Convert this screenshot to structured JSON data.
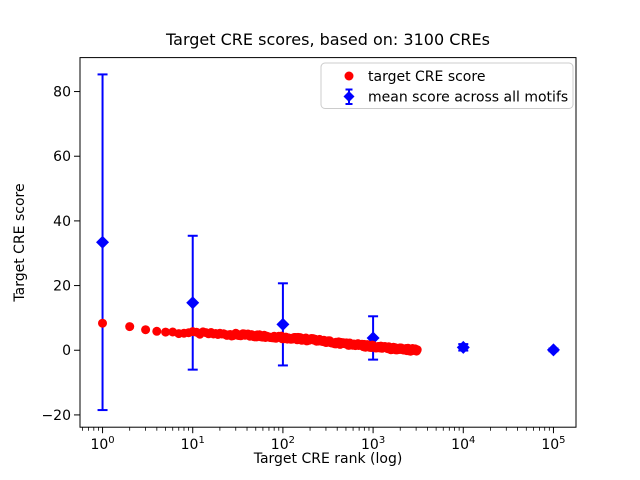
{
  "chart_data": {
    "type": "scatter",
    "title": "Target CRE scores, based on: 3100 CREs",
    "xlabel": "Target CRE rank (log)",
    "ylabel": "Target CRE score",
    "x_scale": "log10",
    "xlim_log10": [
      -0.25,
      5.25
    ],
    "ylim": [
      -23.8,
      90.5
    ],
    "x_major_tick_exponents": [
      0,
      1,
      2,
      3,
      4,
      5
    ],
    "y_ticks": [
      -20,
      0,
      20,
      40,
      60,
      80
    ],
    "y_tick_labels": [
      "−20",
      "0",
      "20",
      "40",
      "60",
      "80"
    ],
    "grid": false,
    "legend_position": "upper right",
    "colors": {
      "target": "#ff0000",
      "mean": "#0000ff",
      "frame": "#000000",
      "legend_border": "#cccccc"
    },
    "series": [
      {
        "name": "target CRE score",
        "marker": "circle",
        "color": "#ff0000",
        "n_points": 3100,
        "x_range": [
          1,
          3100
        ],
        "curve_keypoints_rank_score": [
          [
            1,
            8.35
          ],
          [
            2,
            7.3
          ],
          [
            3,
            6.35
          ],
          [
            4,
            5.85
          ],
          [
            5,
            5.6
          ],
          [
            7,
            5.45
          ],
          [
            10,
            5.35
          ],
          [
            15,
            5.15
          ],
          [
            20,
            5.0
          ],
          [
            30,
            4.8
          ],
          [
            50,
            4.5
          ],
          [
            70,
            4.25
          ],
          [
            100,
            3.95
          ],
          [
            150,
            3.55
          ],
          [
            200,
            3.25
          ],
          [
            300,
            2.7
          ],
          [
            500,
            2.0
          ],
          [
            700,
            1.6
          ],
          [
            1000,
            1.1
          ],
          [
            1500,
            0.65
          ],
          [
            2000,
            0.35
          ],
          [
            2500,
            0.15
          ],
          [
            3100,
            0.02
          ]
        ]
      },
      {
        "name": "mean score across all motifs",
        "marker": "diamond",
        "color": "#0000ff",
        "x": [
          1,
          10,
          100,
          1000,
          10000,
          100000
        ],
        "y": [
          33.4,
          14.7,
          8.0,
          3.8,
          0.9,
          0.1
        ],
        "yerr": [
          51.9,
          20.7,
          12.7,
          6.7,
          1.0,
          0.4
        ]
      }
    ]
  }
}
